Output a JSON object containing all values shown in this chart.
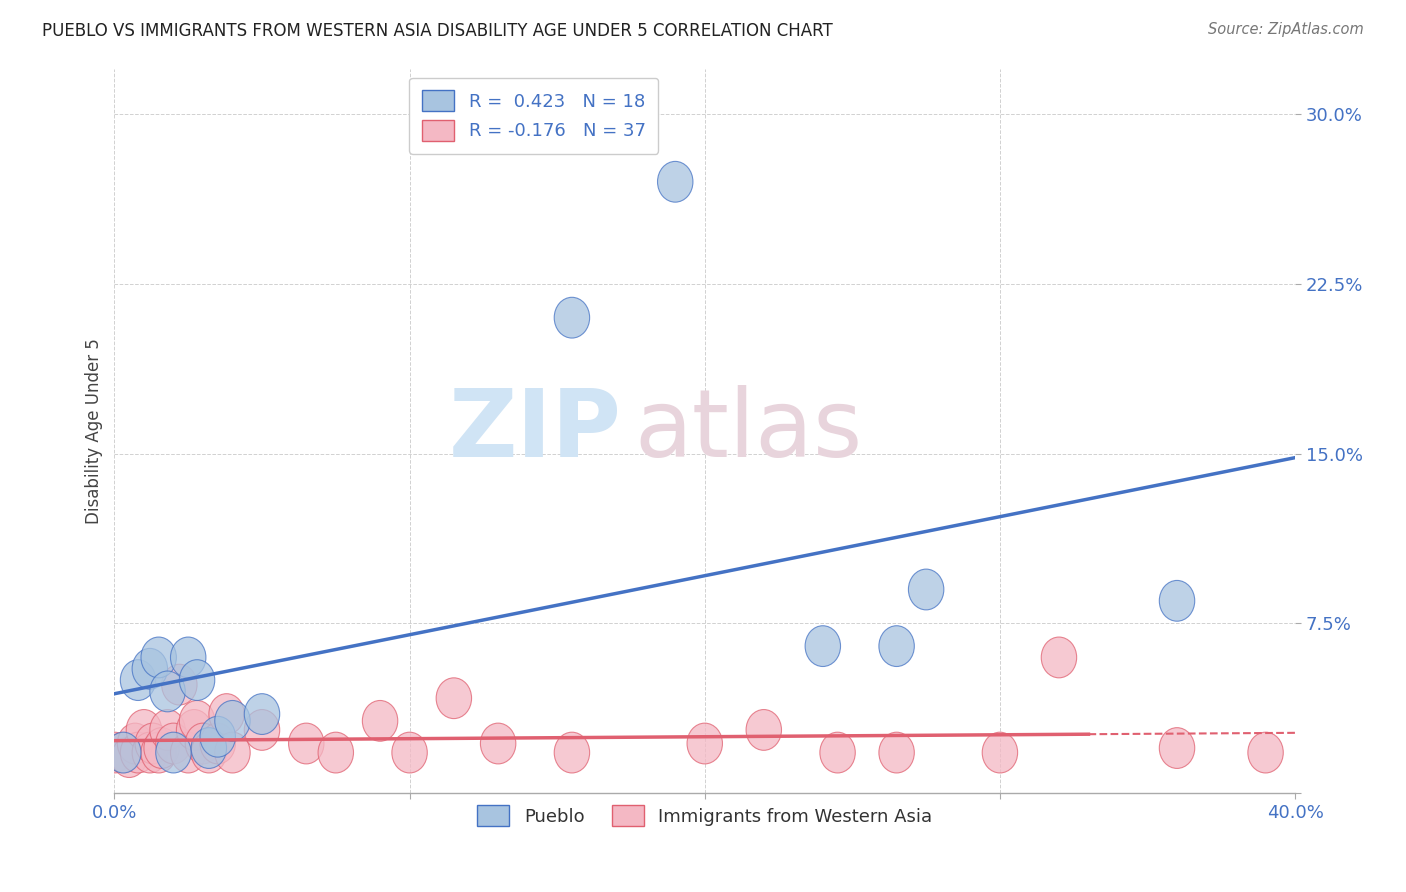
{
  "title": "PUEBLO VS IMMIGRANTS FROM WESTERN ASIA DISABILITY AGE UNDER 5 CORRELATION CHART",
  "source": "Source: ZipAtlas.com",
  "ylabel": "Disability Age Under 5",
  "xlabel_label1": "Pueblo",
  "xlabel_label2": "Immigrants from Western Asia",
  "r1": 0.423,
  "n1": 18,
  "r2": -0.176,
  "n2": 37,
  "xlim": [
    0.0,
    0.4
  ],
  "ylim": [
    0.0,
    0.32
  ],
  "yticks": [
    0.0,
    0.075,
    0.15,
    0.225,
    0.3
  ],
  "ytick_labels": [
    "",
    "7.5%",
    "15.0%",
    "22.5%",
    "30.0%"
  ],
  "xticks": [
    0.0,
    0.1,
    0.2,
    0.3,
    0.4
  ],
  "xtick_labels": [
    "0.0%",
    "",
    "",
    "",
    "40.0%"
  ],
  "color_blue": "#A8C4E0",
  "color_pink": "#F4B8C4",
  "line_blue": "#4472C4",
  "line_pink": "#E06070",
  "pueblo_x": [
    0.003,
    0.008,
    0.012,
    0.015,
    0.018,
    0.02,
    0.025,
    0.028,
    0.032,
    0.035,
    0.04,
    0.05,
    0.155,
    0.19,
    0.24,
    0.265,
    0.275,
    0.36
  ],
  "pueblo_y": [
    0.018,
    0.05,
    0.055,
    0.06,
    0.045,
    0.018,
    0.06,
    0.05,
    0.02,
    0.025,
    0.032,
    0.035,
    0.21,
    0.27,
    0.065,
    0.065,
    0.09,
    0.085
  ],
  "immig_x": [
    0.0,
    0.003,
    0.005,
    0.007,
    0.008,
    0.01,
    0.012,
    0.013,
    0.015,
    0.016,
    0.018,
    0.02,
    0.022,
    0.025,
    0.027,
    0.028,
    0.03,
    0.032,
    0.035,
    0.038,
    0.04,
    0.05,
    0.065,
    0.075,
    0.09,
    0.1,
    0.115,
    0.13,
    0.155,
    0.2,
    0.22,
    0.245,
    0.265,
    0.3,
    0.32,
    0.36,
    0.39
  ],
  "immig_y": [
    0.018,
    0.018,
    0.016,
    0.022,
    0.018,
    0.028,
    0.018,
    0.022,
    0.018,
    0.02,
    0.028,
    0.022,
    0.048,
    0.018,
    0.028,
    0.032,
    0.022,
    0.018,
    0.022,
    0.035,
    0.018,
    0.028,
    0.022,
    0.018,
    0.032,
    0.018,
    0.042,
    0.022,
    0.018,
    0.022,
    0.028,
    0.018,
    0.018,
    0.018,
    0.06,
    0.02,
    0.018
  ],
  "watermark_zip": "ZIP",
  "watermark_atlas": "atlas",
  "bg_color": "#FFFFFF",
  "grid_color": "#CCCCCC"
}
